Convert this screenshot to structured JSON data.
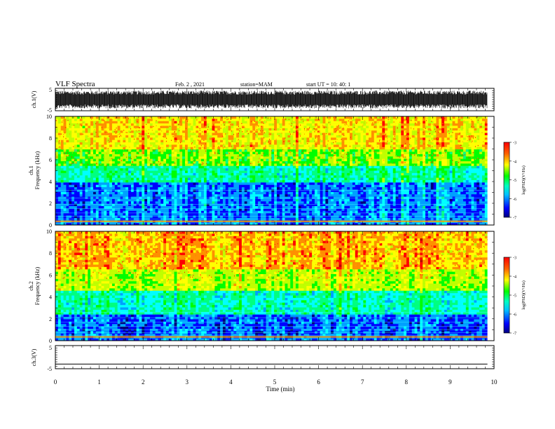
{
  "header": {
    "title": "VLF Spectra",
    "date": "Feb. 2 , 2021",
    "station": "station=MAM",
    "start": "start UT =  10: 40: 1"
  },
  "chart_data": [
    {
      "type": "line",
      "panel": "ch1-waveform",
      "ylabel": "ch.1(V)",
      "ylim": [
        -5,
        5
      ],
      "yticks": [
        "5",
        "-5"
      ],
      "description_of_signal": "dense broadband noise filling approximately -4 to 4 V",
      "amplitude_range": [
        -4,
        4
      ]
    },
    {
      "type": "heatmap",
      "panel": "ch1-spectrogram",
      "ylabel": "ch.1\nFrequency (kHz)",
      "ylabel_line1": "ch.1",
      "ylabel_line2": "Frequency (kHz)",
      "ylim": [
        0,
        10
      ],
      "yticks": [
        "0",
        "2",
        "4",
        "6",
        "8",
        "10"
      ],
      "colorbar": {
        "label": "log(PSD)(V²/Hz)",
        "range": [
          -7,
          -3
        ],
        "ticks": [
          "-3",
          "-4",
          "-5",
          "-6",
          "-7"
        ]
      },
      "band_log_psd": [
        {
          "f": [
            0,
            4
          ],
          "level": -6.3
        },
        {
          "f": [
            4,
            5.5
          ],
          "level": -5.5
        },
        {
          "f": [
            5.5,
            7
          ],
          "level": -4.8
        },
        {
          "f": [
            7,
            10
          ],
          "level": -4.2
        }
      ]
    },
    {
      "type": "heatmap",
      "panel": "ch2-spectrogram",
      "ylabel_line1": "ch.2",
      "ylabel_line2": "Frequency (kHz)",
      "ylim": [
        0,
        10
      ],
      "yticks": [
        "0",
        "2",
        "4",
        "6",
        "8",
        "10"
      ],
      "colorbar": {
        "label": "log(PSD)(V²/Hz)",
        "range": [
          -7,
          -3
        ],
        "ticks": [
          "-3",
          "-4",
          "-5",
          "-6",
          "-7"
        ]
      },
      "band_log_psd": [
        {
          "f": [
            0,
            2.5
          ],
          "level": -6.4
        },
        {
          "f": [
            2.5,
            4.5
          ],
          "level": -5.6
        },
        {
          "f": [
            4.5,
            6.5
          ],
          "level": -4.6
        },
        {
          "f": [
            6.5,
            10
          ],
          "level": -4.0
        }
      ]
    },
    {
      "type": "line",
      "panel": "ch3-waveform",
      "ylabel": "ch.3(V)",
      "ylim": [
        -5,
        5
      ],
      "yticks": [
        "5",
        "-5"
      ],
      "constant_value": -3.0
    }
  ],
  "x_axis": {
    "xlabel": "Time (min)",
    "xlim": [
      0,
      10
    ],
    "ticks": [
      "0",
      "1",
      "2",
      "3",
      "4",
      "5",
      "6",
      "7",
      "8",
      "9",
      "10"
    ],
    "data_end": 9.85
  },
  "colormap": [
    "#00007a",
    "#0000ff",
    "#00a0ff",
    "#00ffff",
    "#00ff80",
    "#00ff00",
    "#c0ff00",
    "#ffff00",
    "#ff9000",
    "#ff0000",
    "#c00000"
  ]
}
